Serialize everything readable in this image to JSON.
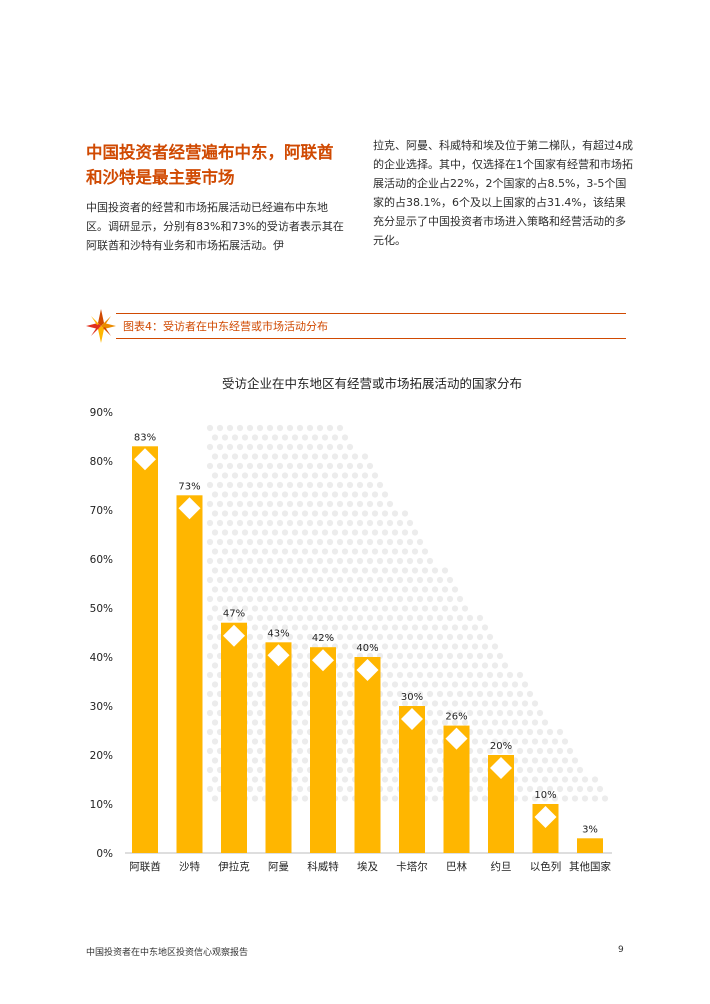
{
  "section": {
    "heading_line1": "中国投资者经营遍布中东，阿联酋",
    "heading_line2": "和沙特是最主要市场",
    "para_left": "中国投资者的经营和市场拓展活动已经遍布中东地区。调研显示，分别有83%和73%的受访者表示其在阿联酋和沙特有业务和市场拓展活动。伊",
    "para_right": "拉克、阿曼、科威特和埃及位于第二梯队，有超过4成的企业选择。其中，仅选择在1个国家有经营和市场拓展活动的企业占22%，2个国家的占8.5%，3-5个国家的占38.1%，6个及以上国家的占31.4%，该结果充分显示了中国投资者市场进入策略和经营活动的多元化。"
  },
  "figure": {
    "label": "图表4：受访者在中东经营或市场活动分布",
    "accent_color": "#d04a02"
  },
  "chart_data": {
    "type": "bar",
    "title": "受访企业在中东地区有经营或市场拓展活动的国家分布",
    "categories": [
      "阿联酋",
      "沙特",
      "伊拉克",
      "阿曼",
      "科威特",
      "埃及",
      "卡塔尔",
      "巴林",
      "约旦",
      "以色列",
      "其他国家"
    ],
    "values": [
      83,
      73,
      47,
      43,
      42,
      40,
      30,
      26,
      20,
      10,
      3
    ],
    "value_labels": [
      "83%",
      "73%",
      "47%",
      "43%",
      "42%",
      "40%",
      "30%",
      "26%",
      "20%",
      "10%",
      "3%"
    ],
    "yticks": [
      "0%",
      "10%",
      "20%",
      "30%",
      "40%",
      "50%",
      "60%",
      "70%",
      "80%",
      "90%"
    ],
    "ylim": [
      0,
      90
    ],
    "grid": false,
    "legend": "none",
    "bar_color": "#ffb600",
    "marker": "white-diamond"
  },
  "footer": {
    "report_title": "中国投资者在中东地区投资信心观察报告",
    "page_number": "9"
  }
}
